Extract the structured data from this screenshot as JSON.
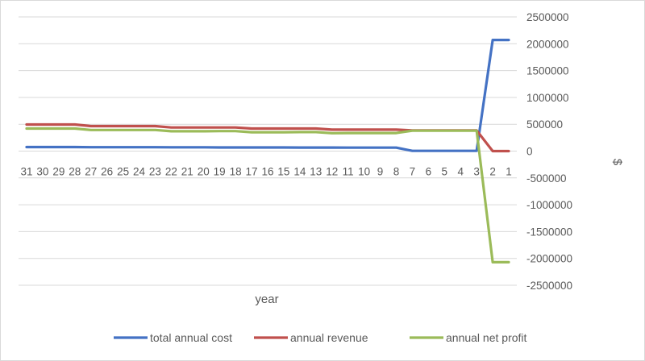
{
  "chart_data": {
    "type": "line",
    "xlabel": "year",
    "ylabel": "$",
    "x": [
      31,
      30,
      29,
      28,
      27,
      26,
      25,
      24,
      23,
      22,
      21,
      20,
      19,
      18,
      17,
      16,
      15,
      14,
      13,
      12,
      11,
      10,
      9,
      8,
      7,
      6,
      5,
      4,
      3,
      2,
      1
    ],
    "ylim": [
      -2500000,
      2500000
    ],
    "yticks": [
      2500000,
      2000000,
      1500000,
      1000000,
      500000,
      0,
      -500000,
      -1000000,
      -1500000,
      -2000000,
      -2500000
    ],
    "grid": true,
    "legend_position": "bottom",
    "series": [
      {
        "name": "total annual cost",
        "color": "#4472c4",
        "values": [
          75000,
          75000,
          75000,
          75000,
          72000,
          72000,
          72000,
          72000,
          72000,
          70000,
          70000,
          70000,
          68000,
          68000,
          68000,
          68000,
          68000,
          66000,
          66000,
          66000,
          64000,
          64000,
          64000,
          64000,
          5000,
          5000,
          5000,
          5000,
          5000,
          2070000,
          2070000
        ]
      },
      {
        "name": "annual revenue",
        "color": "#c0504d",
        "values": [
          495000,
          495000,
          495000,
          495000,
          465000,
          465000,
          465000,
          465000,
          465000,
          440000,
          440000,
          440000,
          440000,
          440000,
          420000,
          420000,
          420000,
          420000,
          420000,
          400000,
          400000,
          400000,
          400000,
          400000,
          385000,
          385000,
          385000,
          385000,
          385000,
          0,
          0
        ]
      },
      {
        "name": "annual net profit",
        "color": "#9bbb59",
        "values": [
          420000,
          420000,
          420000,
          420000,
          393000,
          393000,
          393000,
          393000,
          393000,
          370000,
          370000,
          370000,
          372000,
          372000,
          352000,
          352000,
          352000,
          354000,
          354000,
          334000,
          336000,
          336000,
          336000,
          336000,
          380000,
          380000,
          380000,
          380000,
          380000,
          -2070000,
          -2070000
        ]
      }
    ]
  }
}
